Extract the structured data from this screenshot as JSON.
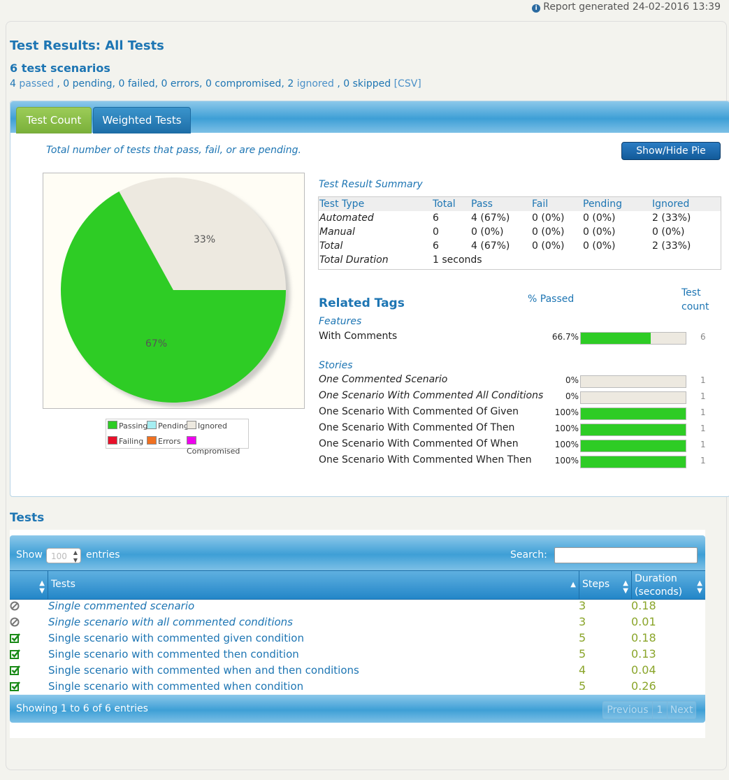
{
  "report_generated": "Report generated 24-02-2016 13:39",
  "title": "Test Results: All Tests",
  "scenario_count": "6 test scenarios",
  "summary": {
    "passed_num": "4",
    "passed_word": "passed",
    "middle": ", 0 pending, 0 failed, 0 errors, 0 compromised, 2",
    "ignored_word": "ignored",
    "skipped": ", 0 skipped",
    "csv": "[CSV]"
  },
  "tabs": [
    {
      "label": "Test Count"
    },
    {
      "label": "Weighted Tests"
    }
  ],
  "tab_description": "Total number of tests that pass, fail, or are pending.",
  "pie_button": "Show/Hide Pie Chart",
  "pie": {
    "slices": [
      {
        "label": "67%",
        "value": 67,
        "color": "#2ecc25"
      },
      {
        "label": "33%",
        "value": 33,
        "color": "#ede9e0"
      }
    ],
    "legend": [
      {
        "label": "Passing",
        "color": "#2ecc25"
      },
      {
        "label": "Pending",
        "color": "#a6eef2"
      },
      {
        "label": "Ignored",
        "color": "#ede9e0"
      },
      {
        "label": "Failing",
        "color": "#e8102a"
      },
      {
        "label": "Errors",
        "color": "#f07020"
      },
      {
        "label": "Compromised",
        "color": "#ee00ee"
      }
    ]
  },
  "result_summary": {
    "title": "Test Result Summary",
    "headers": [
      "Test Type",
      "Total",
      "Pass",
      "Fail",
      "Pending",
      "Ignored"
    ],
    "rows": [
      [
        "Automated",
        "6",
        "4 (67%)",
        "0 (0%)",
        "0 (0%)",
        "2 (33%)"
      ],
      [
        "Manual",
        "0",
        "0 (0%)",
        "0 (0%)",
        "0 (0%)",
        "0 (0%)"
      ],
      [
        "Total",
        "6",
        "4 (67%)",
        "0 (0%)",
        "0 (0%)",
        "2 (33%)"
      ]
    ],
    "duration_label": "Total Duration",
    "duration_value": "1 seconds"
  },
  "related_tags": {
    "title": "Related Tags",
    "pct_header": "% Passed",
    "count_header_1": "Test",
    "count_header_2": "count",
    "features_label": "Features",
    "features": [
      {
        "name": "With Comments",
        "pct": "66.7%",
        "fill": 0.667,
        "count": "6"
      }
    ],
    "stories_label": "Stories",
    "stories": [
      {
        "name": "One Commented Scenario",
        "pct": "0%",
        "fill": 0,
        "count": "1",
        "italic": true
      },
      {
        "name": "One Scenario With Commented All Conditions",
        "pct": "0%",
        "fill": 0,
        "count": "1",
        "italic": true
      },
      {
        "name": "One Scenario With Commented Of Given",
        "pct": "100%",
        "fill": 1,
        "count": "1",
        "italic": false
      },
      {
        "name": "One Scenario With Commented Of Then",
        "pct": "100%",
        "fill": 1,
        "count": "1",
        "italic": false
      },
      {
        "name": "One Scenario With Commented Of When",
        "pct": "100%",
        "fill": 1,
        "count": "1",
        "italic": false
      },
      {
        "name": "One Scenario With Commented When Then",
        "pct": "100%",
        "fill": 1,
        "count": "1",
        "italic": false
      }
    ]
  },
  "tests": {
    "heading": "Tests",
    "show_label": "Show",
    "entries_value": "100",
    "entries_label": "entries",
    "search_label": "Search:",
    "columns": {
      "tests": "Tests",
      "steps": "Steps",
      "duration_1": "Duration",
      "duration_2": "(seconds)"
    },
    "rows": [
      {
        "status": "ignored",
        "name": "Single commented scenario",
        "steps": "3",
        "duration": "0.18"
      },
      {
        "status": "ignored",
        "name": "Single scenario with all commented conditions",
        "steps": "3",
        "duration": "0.01"
      },
      {
        "status": "passed",
        "name": "Single scenario with commented given condition",
        "steps": "5",
        "duration": "0.18"
      },
      {
        "status": "passed",
        "name": "Single scenario with commented then condition",
        "steps": "5",
        "duration": "0.13"
      },
      {
        "status": "passed",
        "name": "Single scenario with commented when and then conditions",
        "steps": "4",
        "duration": "0.04"
      },
      {
        "status": "passed",
        "name": "Single scenario with commented when condition",
        "steps": "5",
        "duration": "0.26"
      }
    ],
    "info": "Showing 1 to 6 of 6 entries",
    "pager": {
      "previous": "Previous",
      "page": "1",
      "next": "Next"
    }
  }
}
